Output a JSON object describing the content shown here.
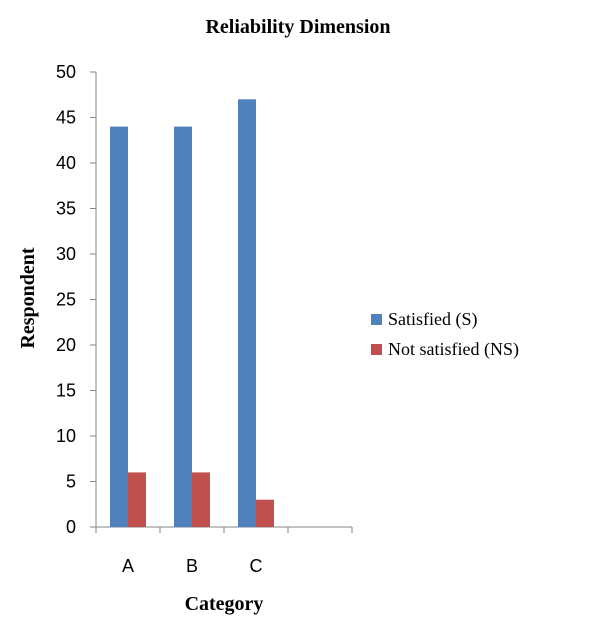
{
  "chart_data": {
    "type": "bar",
    "title": "Reliability Dimension",
    "xlabel": "Category",
    "ylabel": "Respondent",
    "categories": [
      "A",
      "B",
      "C"
    ],
    "ylim": [
      0,
      50
    ],
    "yticks": [
      0,
      5,
      10,
      15,
      20,
      25,
      30,
      35,
      40,
      45,
      50
    ],
    "grid": false,
    "legend_position": "right",
    "series": [
      {
        "name": "Satisfied (S)",
        "values": [
          44,
          44,
          47
        ],
        "color": "#4F81BD"
      },
      {
        "name": "Not satisfied (NS)",
        "values": [
          6,
          6,
          3
        ],
        "color": "#C0504D"
      }
    ]
  }
}
